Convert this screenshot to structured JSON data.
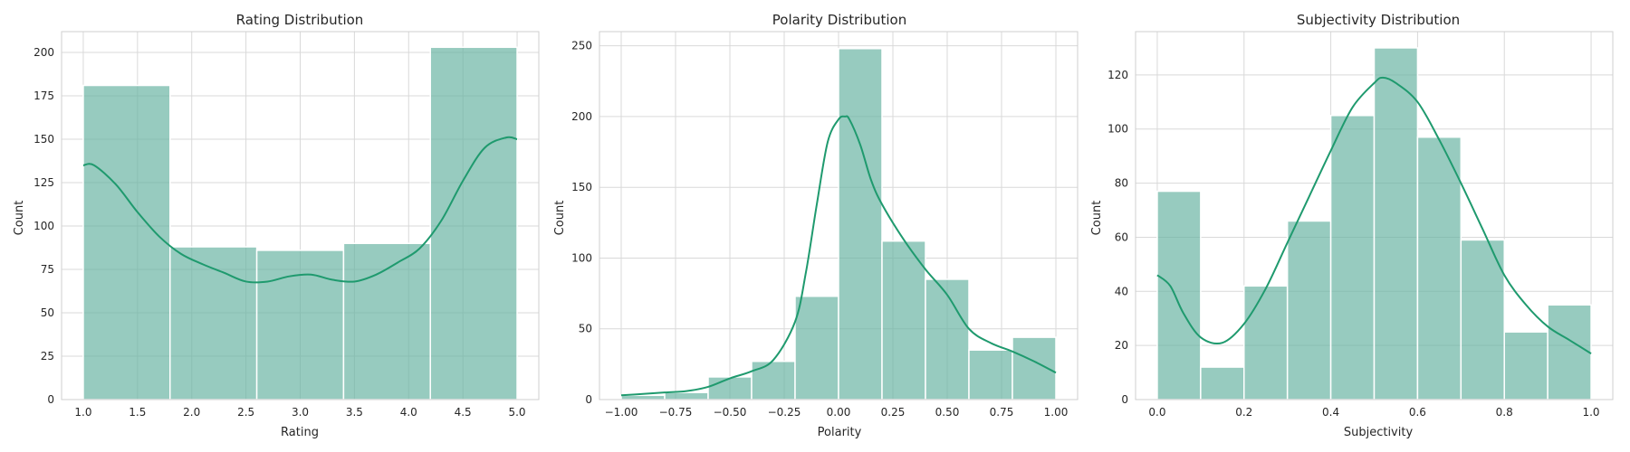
{
  "colors": {
    "bar_fill": "#66b2a0",
    "bar_opacity": 0.68,
    "kde_line": "#1f9a6e",
    "grid": "#d9d9d9",
    "frame": "#cfcfcf",
    "background": "#ffffff"
  },
  "chart_data": [
    {
      "type": "bar",
      "title": "Rating Distribution",
      "xlabel": "Rating",
      "ylabel": "Count",
      "grid": true,
      "xlim": [
        0.8,
        5.2
      ],
      "ylim": [
        0,
        212
      ],
      "xticks": [
        1.0,
        1.5,
        2.0,
        2.5,
        3.0,
        3.5,
        4.0,
        4.5,
        5.0
      ],
      "xtick_labels": [
        "1.0",
        "1.5",
        "2.0",
        "2.5",
        "3.0",
        "3.5",
        "4.0",
        "4.5",
        "5.0"
      ],
      "yticks": [
        0,
        25,
        50,
        75,
        100,
        125,
        150,
        175,
        200
      ],
      "ytick_labels": [
        "0",
        "25",
        "50",
        "75",
        "100",
        "125",
        "150",
        "175",
        "200"
      ],
      "bin_edges": [
        1.0,
        1.8,
        2.6,
        3.4,
        4.2,
        5.0
      ],
      "counts": [
        181,
        88,
        86,
        90,
        203
      ],
      "kde": {
        "x": [
          1.0,
          1.1,
          1.3,
          1.5,
          1.7,
          1.9,
          2.1,
          2.3,
          2.5,
          2.7,
          2.9,
          3.1,
          3.3,
          3.5,
          3.7,
          3.9,
          4.1,
          4.3,
          4.5,
          4.7,
          4.9,
          5.0
        ],
        "y": [
          135,
          135,
          124,
          108,
          94,
          84,
          78,
          73,
          68,
          68,
          71,
          72,
          69,
          68,
          72,
          79,
          87,
          103,
          126,
          145,
          151,
          150
        ]
      }
    },
    {
      "type": "bar",
      "title": "Polarity Distribution",
      "xlabel": "Polarity",
      "ylabel": "Count",
      "grid": true,
      "xlim": [
        -1.1,
        1.1
      ],
      "ylim": [
        0,
        260
      ],
      "xticks": [
        -1.0,
        -0.75,
        -0.5,
        -0.25,
        0.0,
        0.25,
        0.5,
        0.75,
        1.0
      ],
      "xtick_labels": [
        "−1.00",
        "−0.75",
        "−0.50",
        "−0.25",
        "0.00",
        "0.25",
        "0.50",
        "0.75",
        "1.00"
      ],
      "yticks": [
        0,
        50,
        100,
        150,
        200,
        250
      ],
      "ytick_labels": [
        "0",
        "50",
        "100",
        "150",
        "200",
        "250"
      ],
      "bin_edges": [
        -1.0,
        -0.8,
        -0.6,
        -0.4,
        -0.2,
        0.0,
        0.2,
        0.4,
        0.6,
        0.8,
        1.0
      ],
      "counts": [
        3,
        5,
        16,
        27,
        73,
        248,
        112,
        85,
        35,
        44
      ],
      "kde": {
        "x": [
          -1.0,
          -0.9,
          -0.8,
          -0.7,
          -0.6,
          -0.5,
          -0.4,
          -0.3,
          -0.2,
          -0.15,
          -0.1,
          -0.05,
          0.0,
          0.03,
          0.05,
          0.1,
          0.15,
          0.2,
          0.3,
          0.4,
          0.5,
          0.6,
          0.7,
          0.8,
          0.9,
          1.0
        ],
        "y": [
          3,
          4,
          5,
          6,
          9,
          15,
          20,
          28,
          55,
          90,
          138,
          182,
          198,
          200,
          198,
          180,
          155,
          138,
          113,
          92,
          74,
          50,
          40,
          34,
          27,
          19
        ]
      }
    },
    {
      "type": "bar",
      "title": "Subjectivity Distribution",
      "xlabel": "Subjectivity",
      "ylabel": "Count",
      "grid": true,
      "xlim": [
        -0.05,
        1.05
      ],
      "ylim": [
        0,
        136
      ],
      "xticks": [
        0.0,
        0.2,
        0.4,
        0.6,
        0.8,
        1.0
      ],
      "xtick_labels": [
        "0.0",
        "0.2",
        "0.4",
        "0.6",
        "0.8",
        "1.0"
      ],
      "yticks": [
        0,
        20,
        40,
        60,
        80,
        100,
        120
      ],
      "ytick_labels": [
        "0",
        "20",
        "40",
        "60",
        "80",
        "100",
        "120"
      ],
      "bin_edges": [
        0.0,
        0.1,
        0.2,
        0.3,
        0.4,
        0.5,
        0.6,
        0.7,
        0.8,
        0.9,
        1.0
      ],
      "counts": [
        77,
        12,
        42,
        66,
        105,
        130,
        97,
        59,
        25,
        35
      ],
      "kde": {
        "x": [
          0.0,
          0.03,
          0.06,
          0.1,
          0.15,
          0.2,
          0.25,
          0.3,
          0.35,
          0.4,
          0.45,
          0.5,
          0.52,
          0.55,
          0.6,
          0.65,
          0.7,
          0.75,
          0.8,
          0.85,
          0.9,
          0.95,
          1.0
        ],
        "y": [
          46,
          42,
          32,
          23,
          21,
          28,
          41,
          58,
          75,
          92,
          108,
          117,
          119,
          117,
          110,
          96,
          80,
          63,
          46,
          35,
          27,
          22,
          17
        ]
      }
    }
  ]
}
